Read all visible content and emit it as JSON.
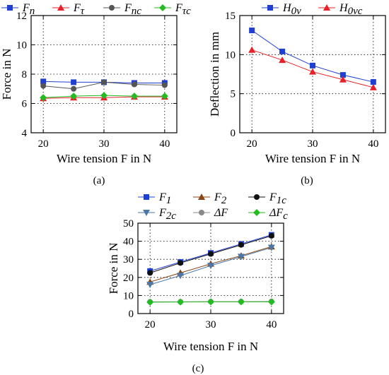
{
  "chart_data": [
    {
      "type": "line",
      "caption": "(a)",
      "xlabel": "Wire tension F in N",
      "ylabel": "Force in N",
      "xlim": [
        18,
        42
      ],
      "ylim": [
        4,
        12
      ],
      "xticks": [
        20,
        30,
        40
      ],
      "yticks": [
        4,
        6,
        8,
        10,
        12
      ],
      "grid": true,
      "legend_position": "top",
      "x": [
        20,
        25,
        30,
        35,
        40
      ],
      "series": [
        {
          "name": "F_n",
          "base": "F",
          "sub": "n",
          "color": "#1f3fd0",
          "marker": "square",
          "values": [
            7.5,
            7.45,
            7.45,
            7.4,
            7.4
          ]
        },
        {
          "name": "F_τ",
          "base": "F",
          "sub": "τ",
          "color": "#e8202a",
          "marker": "triangle",
          "values": [
            6.35,
            6.4,
            6.4,
            6.45,
            6.45
          ]
        },
        {
          "name": "F_nc",
          "base": "F",
          "sub": "nc",
          "color": "#555555",
          "marker": "circle",
          "values": [
            7.2,
            7.0,
            7.45,
            7.3,
            7.25
          ]
        },
        {
          "name": "F_τc",
          "base": "F",
          "sub": "τc",
          "color": "#22bb22",
          "marker": "diamond",
          "values": [
            6.4,
            6.5,
            6.55,
            6.5,
            6.5
          ]
        }
      ]
    },
    {
      "type": "line",
      "caption": "(b)",
      "xlabel": "Wire tension F in N",
      "ylabel": "Deflection in mm",
      "xlim": [
        18,
        42
      ],
      "ylim": [
        0,
        15
      ],
      "xticks": [
        20,
        30,
        40
      ],
      "yticks": [
        0,
        5,
        10,
        15
      ],
      "grid": true,
      "legend_position": "top",
      "x": [
        20,
        25,
        30,
        35,
        40
      ],
      "series": [
        {
          "name": "H_0v",
          "base": "H",
          "sub": "0v",
          "color": "#1f3fd0",
          "marker": "square",
          "values": [
            13.1,
            10.4,
            8.6,
            7.4,
            6.5
          ]
        },
        {
          "name": "H_0vc",
          "base": "H",
          "sub": "0vc",
          "color": "#e8202a",
          "marker": "triangle",
          "values": [
            10.6,
            9.3,
            7.8,
            6.8,
            5.8
          ]
        }
      ]
    },
    {
      "type": "line",
      "caption": "(c)",
      "xlabel": "Wire tension F in N",
      "ylabel": "Force in N",
      "xlim": [
        18,
        42
      ],
      "ylim": [
        0,
        50
      ],
      "xticks": [
        20,
        30,
        40
      ],
      "yticks": [
        0,
        10,
        20,
        30,
        40,
        50
      ],
      "grid": true,
      "legend_position": "top",
      "x": [
        20,
        25,
        30,
        35,
        40
      ],
      "series": [
        {
          "name": "F_1",
          "base": "F",
          "sub": "1",
          "color": "#1f3fd0",
          "marker": "square",
          "values": [
            23.5,
            28.5,
            33.5,
            38.5,
            43.5
          ]
        },
        {
          "name": "F_2",
          "base": "F",
          "sub": "2",
          "color": "#8b4513",
          "marker": "triangle",
          "values": [
            17.5,
            22.5,
            27.5,
            32.0,
            37.0
          ]
        },
        {
          "name": "F_1c",
          "base": "F",
          "sub": "1c",
          "color": "#111111",
          "marker": "circle",
          "values": [
            22.5,
            28.0,
            33.0,
            38.0,
            43.0
          ]
        },
        {
          "name": "F_2c",
          "base": "F",
          "sub": "2c",
          "color": "#4a78a8",
          "marker": "tri-down",
          "values": [
            16.0,
            21.0,
            26.5,
            31.5,
            36.5
          ]
        },
        {
          "name": "ΔF",
          "base": "ΔF",
          "sub": "",
          "color": "#888888",
          "marker": "circle",
          "values": [
            6.5,
            6.5,
            6.6,
            6.6,
            6.7
          ]
        },
        {
          "name": "ΔF_c",
          "base": "ΔF",
          "sub": "c",
          "color": "#22bb22",
          "marker": "diamond",
          "values": [
            6.3,
            6.4,
            6.5,
            6.5,
            6.5
          ]
        }
      ]
    }
  ]
}
